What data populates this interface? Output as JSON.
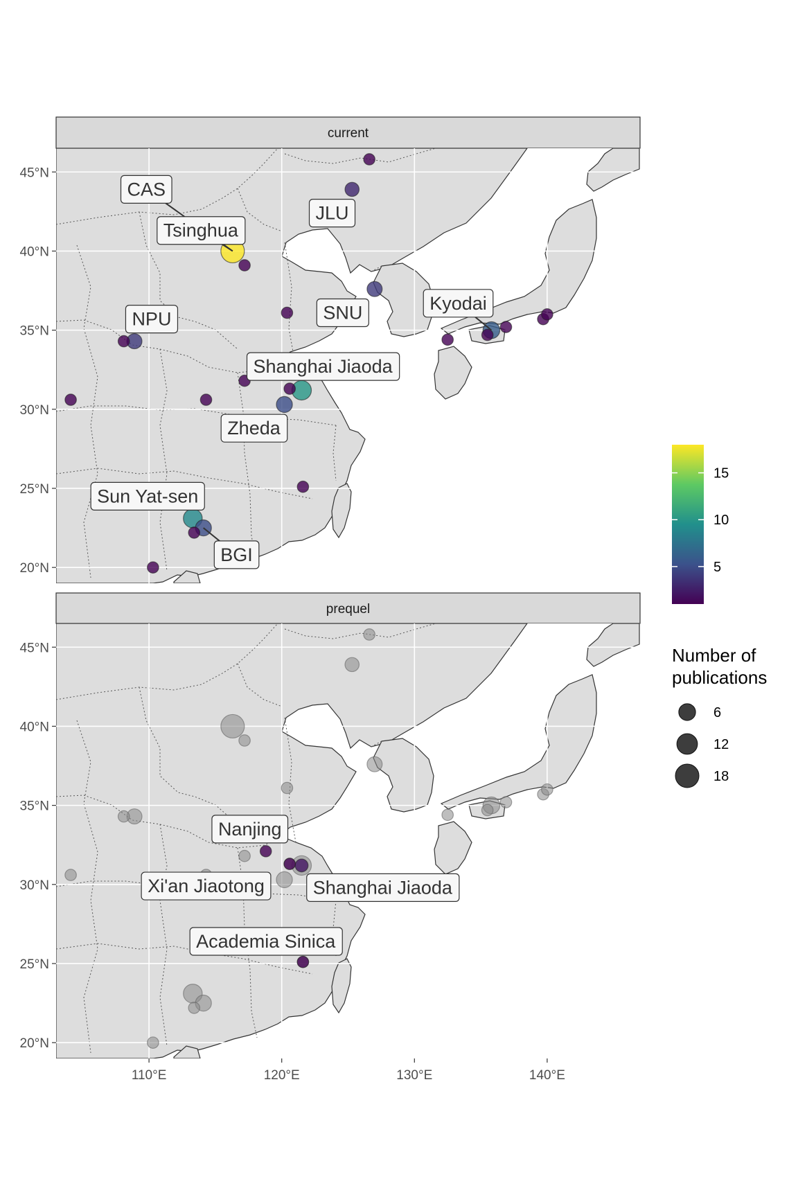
{
  "chart_data": {
    "type": "scatter",
    "map_region": "East Asia",
    "xlim": [
      103,
      147
    ],
    "ylim": [
      19,
      46.5
    ],
    "x_ticks": [
      {
        "value": 110,
        "label": "110°E"
      },
      {
        "value": 120,
        "label": "120°E"
      },
      {
        "value": 130,
        "label": "130°E"
      },
      {
        "value": 140,
        "label": "140°E"
      }
    ],
    "y_ticks": [
      {
        "value": 20,
        "label": "20°N"
      },
      {
        "value": 25,
        "label": "25°N"
      },
      {
        "value": 30,
        "label": "30°N"
      },
      {
        "value": 35,
        "label": "35°N"
      },
      {
        "value": 40,
        "label": "40°N"
      },
      {
        "value": 45,
        "label": "45°N"
      }
    ],
    "panels": [
      {
        "title": "current",
        "points": [
          {
            "lon": 116.3,
            "lat": 40.0,
            "value": 18
          },
          {
            "lon": 117.2,
            "lat": 39.1,
            "value": 1
          },
          {
            "lon": 126.6,
            "lat": 45.8,
            "value": 1
          },
          {
            "lon": 125.3,
            "lat": 43.9,
            "value": 3
          },
          {
            "lon": 127.0,
            "lat": 37.6,
            "value": 4
          },
          {
            "lon": 120.4,
            "lat": 36.1,
            "value": 1
          },
          {
            "lon": 108.9,
            "lat": 34.3,
            "value": 4
          },
          {
            "lon": 108.1,
            "lat": 34.3,
            "value": 1
          },
          {
            "lon": 104.1,
            "lat": 30.6,
            "value": 1
          },
          {
            "lon": 114.3,
            "lat": 30.6,
            "value": 1
          },
          {
            "lon": 117.2,
            "lat": 31.8,
            "value": 1
          },
          {
            "lon": 120.6,
            "lat": 31.3,
            "value": 1
          },
          {
            "lon": 121.5,
            "lat": 31.2,
            "value": 10
          },
          {
            "lon": 120.2,
            "lat": 30.3,
            "value": 5
          },
          {
            "lon": 121.6,
            "lat": 25.1,
            "value": 1
          },
          {
            "lon": 113.3,
            "lat": 23.1,
            "value": 9
          },
          {
            "lon": 114.1,
            "lat": 22.5,
            "value": 5
          },
          {
            "lon": 113.4,
            "lat": 22.2,
            "value": 1
          },
          {
            "lon": 110.3,
            "lat": 20.0,
            "value": 1
          },
          {
            "lon": 135.8,
            "lat": 35.0,
            "value": 6
          },
          {
            "lon": 135.5,
            "lat": 34.7,
            "value": 1
          },
          {
            "lon": 136.9,
            "lat": 35.2,
            "value": 1
          },
          {
            "lon": 132.5,
            "lat": 34.4,
            "value": 1
          },
          {
            "lon": 139.7,
            "lat": 35.7,
            "value": 1
          },
          {
            "lon": 140.0,
            "lat": 36.0,
            "value": 1
          }
        ],
        "labels": [
          {
            "text": "CAS",
            "lon": 109.8,
            "lat": 43.9,
            "target_lon": 116.3,
            "target_lat": 40.0
          },
          {
            "text": "Tsinghua",
            "lon": 113.9,
            "lat": 41.3,
            "target_lon": 116.3,
            "target_lat": 40.0
          },
          {
            "text": "JLU",
            "lon": 123.8,
            "lat": 42.4
          },
          {
            "text": "SNU",
            "lon": 124.6,
            "lat": 36.1
          },
          {
            "text": "Kyodai",
            "lon": 133.3,
            "lat": 36.7,
            "target_lon": 135.8,
            "target_lat": 35.0
          },
          {
            "text": "NPU",
            "lon": 110.2,
            "lat": 35.7
          },
          {
            "text": "Shanghai Jiaoda",
            "lon": 123.1,
            "lat": 32.7
          },
          {
            "text": "Zheda",
            "lon": 117.9,
            "lat": 28.8
          },
          {
            "text": "Sun Yat-sen",
            "lon": 109.9,
            "lat": 24.5
          },
          {
            "text": "BGI",
            "lon": 116.6,
            "lat": 20.8,
            "target_lon": 114.1,
            "target_lat": 22.5
          }
        ]
      },
      {
        "title": "prequel",
        "points": [
          {
            "lon": 118.8,
            "lat": 32.1,
            "value": 1
          },
          {
            "lon": 120.6,
            "lat": 31.3,
            "value": 1
          },
          {
            "lon": 121.5,
            "lat": 31.2,
            "value": 2
          },
          {
            "lon": 121.6,
            "lat": 25.1,
            "value": 1
          }
        ],
        "labels": [
          {
            "text": "Nanjing",
            "lon": 117.6,
            "lat": 33.5
          },
          {
            "text": "Xi'an Jiaotong",
            "lon": 114.3,
            "lat": 29.9
          },
          {
            "text": "Shanghai Jiaoda",
            "lon": 127.6,
            "lat": 29.8
          },
          {
            "text": "Academia Sinica",
            "lon": 118.8,
            "lat": 26.4
          }
        ]
      }
    ],
    "legend": {
      "color_ticks": [
        "5",
        "10",
        "15"
      ],
      "color_tick_values": [
        5,
        10,
        15
      ],
      "color_range": [
        1,
        18
      ],
      "size_title_line1": "Number of",
      "size_title_line2": "publications",
      "size_entries": [
        "6",
        "12",
        "18"
      ],
      "size_values": [
        6,
        12,
        18
      ]
    },
    "colors": {
      "viridis": [
        "#440154",
        "#3b528b",
        "#21908c",
        "#5dc963",
        "#fde725"
      ],
      "land": "#dddddd",
      "sea": "#ffffff",
      "strip": "#d9d9d9",
      "ghost_points": "#888888"
    }
  }
}
